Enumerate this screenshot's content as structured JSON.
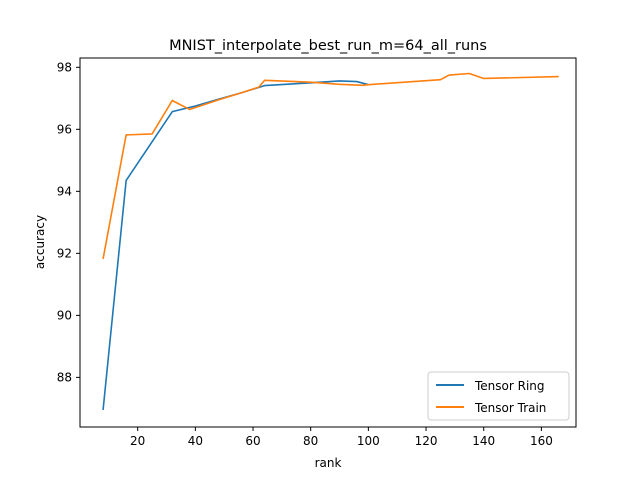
{
  "chart_data": {
    "type": "line",
    "title": "MNIST_interpolate_best_run_m=64_all_runs",
    "xlabel": "rank",
    "ylabel": "accuracy",
    "xlim": [
      0,
      172
    ],
    "ylim": [
      86.4,
      98.3
    ],
    "xticks": [
      20,
      40,
      60,
      80,
      100,
      120,
      140,
      160
    ],
    "yticks": [
      88,
      90,
      92,
      94,
      96,
      98
    ],
    "grid": false,
    "legend_position": "lower-right",
    "series": [
      {
        "name": "Tensor Ring",
        "color": "#1f77b4",
        "x": [
          8,
          16,
          32,
          40,
          48,
          56,
          64,
          80,
          90,
          96,
          100
        ],
        "y": [
          86.95,
          94.35,
          96.57,
          96.75,
          96.97,
          97.18,
          97.41,
          97.5,
          97.56,
          97.54,
          97.44
        ]
      },
      {
        "name": "Tensor Train",
        "color": "#ff7f0e",
        "x": [
          8,
          16,
          25,
          32,
          38,
          48,
          56,
          62,
          64,
          80,
          90,
          98,
          100,
          125,
          128,
          135,
          140,
          166
        ],
        "y": [
          91.82,
          95.82,
          95.85,
          96.93,
          96.64,
          96.95,
          97.18,
          97.36,
          97.58,
          97.52,
          97.45,
          97.42,
          97.44,
          97.6,
          97.75,
          97.8,
          97.64,
          97.7
        ]
      }
    ]
  }
}
